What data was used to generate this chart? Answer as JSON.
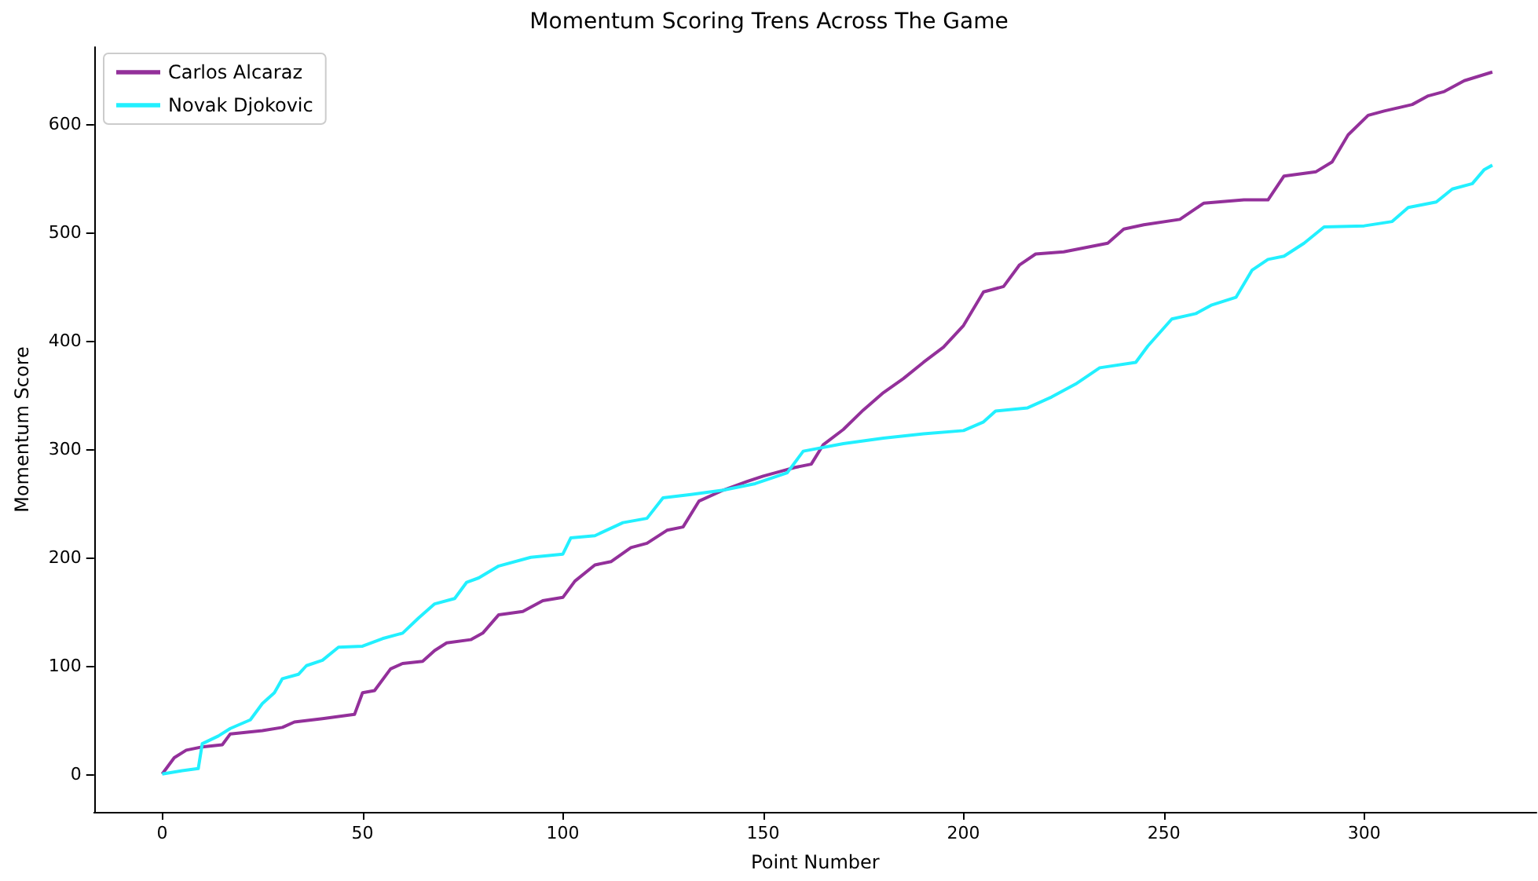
{
  "chart_data": {
    "type": "line",
    "title": "Momentum Scoring Trens Across The Game",
    "xlabel": "Point Number",
    "ylabel": "Momentum Score",
    "xlim": [
      -17,
      343
    ],
    "xticks": [
      0,
      50,
      100,
      150,
      200,
      250,
      300
    ],
    "ylim": [
      -35,
      671
    ],
    "yticks": [
      0,
      100,
      200,
      300,
      400,
      500,
      600
    ],
    "grid": false,
    "legend": "top left",
    "marker": "none",
    "line_style": "solid",
    "series": [
      {
        "name": "Carlos Alcaraz",
        "color": "#93309a",
        "x": [
          0,
          3,
          6,
          10,
          15,
          17,
          25,
          30,
          33,
          40,
          48,
          50,
          53,
          57,
          60,
          65,
          68,
          71,
          77,
          80,
          84,
          90,
          95,
          100,
          103,
          108,
          112,
          117,
          121,
          126,
          130,
          134,
          140,
          146,
          150,
          155,
          158,
          162,
          165,
          170,
          175,
          180,
          185,
          190,
          195,
          200,
          205,
          210,
          214,
          218,
          225,
          236,
          240,
          245,
          254,
          260,
          270,
          276,
          280,
          288,
          292,
          296,
          301,
          305,
          312,
          316,
          320,
          325,
          332
        ],
        "values": [
          0,
          15,
          22,
          25,
          27,
          37,
          40,
          43,
          48,
          51,
          55,
          75,
          77,
          97,
          102,
          104,
          114,
          121,
          124,
          130,
          147,
          150,
          160,
          163,
          178,
          193,
          196,
          209,
          213,
          225,
          228,
          252,
          262,
          270,
          275,
          280,
          283,
          286,
          304,
          318,
          336,
          352,
          365,
          380,
          394,
          414,
          445,
          450,
          470,
          480,
          482,
          490,
          503,
          507,
          512,
          527,
          530,
          530,
          552,
          556,
          565,
          590,
          608,
          612,
          618,
          626,
          630,
          640,
          648
        ]
      },
      {
        "name": "Novak Djokovic",
        "color": "#22f0ff",
        "x": [
          0,
          5,
          9,
          10,
          14,
          17,
          22,
          25,
          28,
          30,
          34,
          36,
          40,
          44,
          50,
          55,
          60,
          64,
          68,
          73,
          76,
          79,
          84,
          92,
          100,
          102,
          108,
          115,
          121,
          125,
          132,
          140,
          148,
          156,
          160,
          170,
          180,
          190,
          200,
          205,
          208,
          216,
          222,
          228,
          234,
          243,
          246,
          252,
          258,
          262,
          268,
          272,
          276,
          280,
          285,
          290,
          300,
          307,
          311,
          318,
          322,
          327,
          330,
          332
        ],
        "values": [
          0,
          3,
          5,
          28,
          35,
          42,
          50,
          65,
          75,
          88,
          92,
          100,
          105,
          117,
          118,
          125,
          130,
          144,
          157,
          162,
          177,
          181,
          192,
          200,
          203,
          218,
          220,
          232,
          236,
          255,
          258,
          262,
          268,
          278,
          298,
          305,
          310,
          314,
          317,
          325,
          335,
          338,
          348,
          360,
          375,
          380,
          395,
          420,
          425,
          433,
          440,
          465,
          475,
          478,
          490,
          505,
          506,
          510,
          523,
          528,
          540,
          545,
          558,
          562
        ]
      }
    ]
  }
}
